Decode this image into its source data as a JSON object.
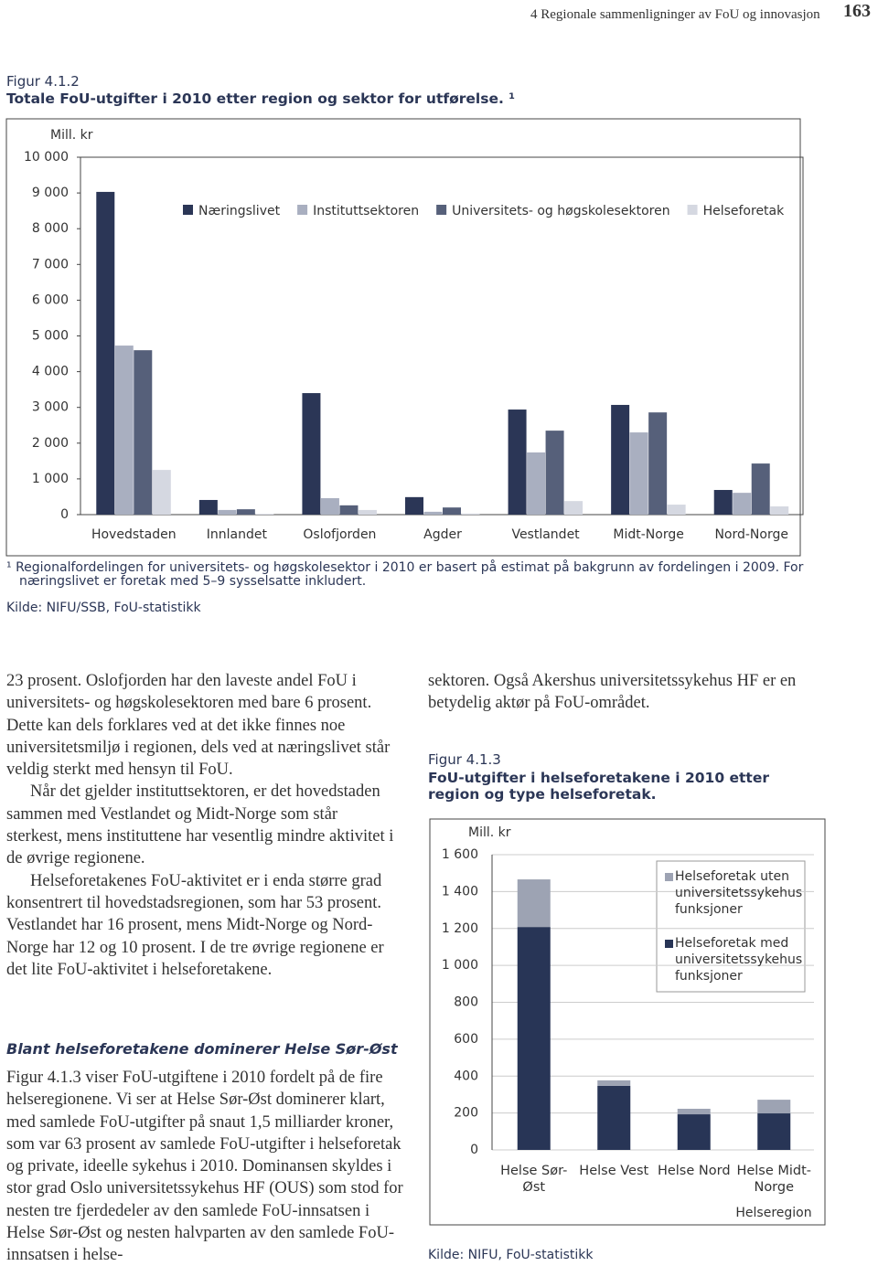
{
  "header": {
    "section": "4 Regionale sammenligninger av FoU og innovasjon",
    "page": "163"
  },
  "chart_data": [
    {
      "type": "bar",
      "figure_label": "Figur 4.1.2",
      "title": "Totale FoU-utgifter i 2010 etter region og sektor for utførelse. ¹",
      "y_label": "Mill. kr",
      "categories": [
        "Hovedstaden",
        "Innlandet",
        "Oslofjorden",
        "Agder",
        "Vestlandet",
        "Midt-Norge",
        "Nord-Norge"
      ],
      "series": [
        {
          "name": "Næringslivet",
          "color": "#2b3656",
          "values": [
            9030,
            410,
            3400,
            490,
            2940,
            3070,
            690
          ]
        },
        {
          "name": "Instituttsektoren",
          "color": "#a9afc0",
          "values": [
            4730,
            130,
            460,
            80,
            1740,
            2300,
            610
          ]
        },
        {
          "name": "Universitets- og høgskolesektoren",
          "color": "#56607a",
          "values": [
            4600,
            150,
            260,
            200,
            2350,
            2860,
            1430
          ]
        },
        {
          "name": "Helseforetak",
          "color": "#d5d8e1",
          "values": [
            1250,
            20,
            130,
            30,
            380,
            280,
            230
          ]
        }
      ],
      "ylim": [
        0,
        10000
      ],
      "yticks": [
        0,
        {
          "value": 1000,
          "label": "1 000"
        },
        {
          "value": 2000,
          "label": "2 000"
        },
        {
          "value": 3000,
          "label": "3 000"
        },
        {
          "value": 4000,
          "label": "4 000"
        },
        {
          "value": 5000,
          "label": "5 000"
        },
        {
          "value": 6000,
          "label": "6 000"
        },
        {
          "value": 7000,
          "label": "7 000"
        },
        {
          "value": 8000,
          "label": "8 000"
        },
        {
          "value": 9000,
          "label": "9 000"
        },
        {
          "value": 10000,
          "label": "10 000"
        }
      ],
      "grid": false,
      "stacked": false,
      "legend": "top",
      "footnote": "¹ Regionalfordelingen for universitets- og høgskolesektor i 2010 er basert på estimat på bakgrunn av fordelingen i 2009. For næringslivet er foretak med 5–9 sysselsatte inkludert.",
      "source": "Kilde: NIFU/SSB, FoU-statistikk"
    },
    {
      "type": "bar",
      "figure_label": "Figur 4.1.3",
      "title": "FoU-utgifter i helseforetakene i 2010 etter region og type helseforetak.",
      "y_label": "Mill. kr",
      "x_label": "Helseregion",
      "categories": [
        "Helse Sør-Øst",
        "Helse Vest",
        "Helse Nord",
        "Helse Midt-Norge"
      ],
      "series": [
        {
          "name": "Helseforetak med universitetssykehusfunksjoner",
          "color": "#283556",
          "values": [
            1208,
            347,
            193,
            198
          ]
        },
        {
          "name": "Helseforetak uten universitetssykehusfunksjoner",
          "color": "#9da3b3",
          "values": [
            258,
            30,
            30,
            74
          ]
        }
      ],
      "ylim": [
        0,
        1600
      ],
      "yticks": [
        0,
        200,
        400,
        600,
        800,
        {
          "value": 1000,
          "label": "1 000"
        },
        {
          "value": 1200,
          "label": "1 200"
        },
        {
          "value": 1400,
          "label": "1 400"
        },
        {
          "value": 1600,
          "label": "1 600"
        }
      ],
      "grid": true,
      "stacked": true,
      "legend": "right",
      "source": "Kilde: NIFU, FoU-statistikk"
    }
  ],
  "body": {
    "left": [
      "23 prosent. Oslofjorden har den laveste andel FoU i universitets- og høgskolesektoren med bare 6 prosent. Dette kan dels forklares ved at det ikke finnes noe universitetsmiljø i regionen, dels ved at næringslivet står veldig sterkt med hensyn til FoU.",
      "Når det gjelder instituttsektoren, er det hovedstaden sammen med Vestlandet og Midt-Norge som står sterkest, mens instituttene har vesentlig mindre aktivitet i de øvrige regionene.",
      "Helseforetakenes FoU-aktivitet er i enda større grad konsentrert til hovedstadsregionen, som har 53 prosent. Vestlandet har 16 prosent, mens Midt-Norge og Nord-Norge har 12 og 10 prosent. I de tre øvrige regionene er det lite FoU-aktivitet i helseforetakene."
    ],
    "heading": "Blant helseforetakene dominerer Helse Sør-Øst",
    "left2": "Figur 4.1.3 viser FoU-utgiftene i 2010 fordelt på de fire helseregionene. Vi ser at Helse Sør-Øst dominerer klart, med samlede FoU-utgifter på snaut 1,5 milliarder kroner, som var 63 prosent av samlede FoU-utgifter i helseforetak og private, ideelle sykehus i 2010. Dominansen skyldes i stor grad Oslo universitetssykehus HF (OUS) som stod for nesten tre fjerdedeler av den samlede FoU-innsatsen i Helse Sør-Øst og nesten halvparten av den samlede FoU-innsatsen i helse-",
    "right": "sektoren. Også Akershus universitetssykehus HF er en betydelig aktør på FoU-området."
  }
}
